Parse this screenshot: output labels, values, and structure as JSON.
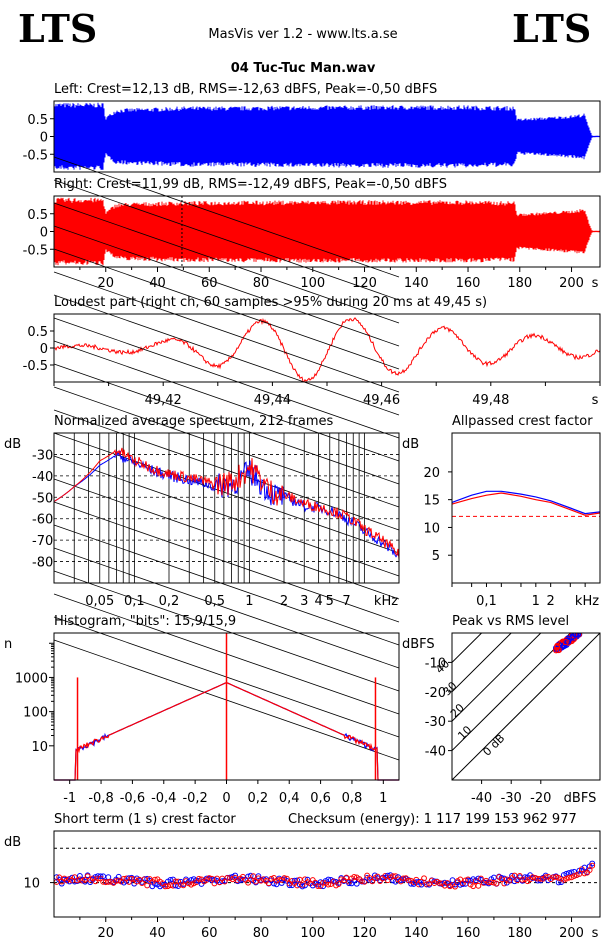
{
  "header": {
    "logo_left": "LTS",
    "logo_right": "LTS",
    "app": "MasVis ver 1.2 - www.lts.a.se",
    "file": "04 Tuc-Tuc Man.wav"
  },
  "colors": {
    "left": "#0000ff",
    "right": "#ff0000"
  },
  "chart_data": [
    {
      "type": "area",
      "title": "Left: Crest=12,13 dB, RMS=-12,63 dBFS, Peak=-0,50 dBFS",
      "ylim": [
        -1,
        1
      ],
      "xlim": [
        0,
        211
      ],
      "y_ticks": [
        "0.5",
        "0",
        "-0.5"
      ],
      "envelope_time_s": [
        0,
        10,
        19,
        20,
        24,
        30,
        40,
        50,
        60,
        70,
        80,
        100,
        120,
        140,
        160,
        170,
        178,
        179,
        190,
        200,
        205,
        207,
        208
      ],
      "envelope_amp": [
        0.95,
        0.95,
        0.95,
        0.55,
        0.78,
        0.8,
        0.82,
        0.85,
        0.85,
        0.85,
        0.86,
        0.87,
        0.88,
        0.88,
        0.88,
        0.86,
        0.86,
        0.5,
        0.55,
        0.6,
        0.65,
        0.2,
        0.02
      ]
    },
    {
      "type": "area",
      "title": "Right: Crest=11,99 dB, RMS=-12,49 dBFS, Peak=-0,50 dBFS",
      "ylim": [
        -1,
        1
      ],
      "xlim": [
        0,
        211
      ],
      "y_ticks": [
        "0.5",
        "0",
        "-0.5"
      ],
      "x_ticks": [
        "20",
        "40",
        "60",
        "80",
        "100",
        "120",
        "140",
        "160",
        "180",
        "200",
        "s"
      ],
      "marker_s": 49.45,
      "envelope_time_s": [
        0,
        10,
        19,
        20,
        24,
        30,
        40,
        50,
        60,
        70,
        80,
        100,
        120,
        140,
        160,
        170,
        178,
        179,
        190,
        200,
        205,
        207,
        208
      ],
      "envelope_amp": [
        0.95,
        0.95,
        0.95,
        0.55,
        0.8,
        0.82,
        0.84,
        0.86,
        0.86,
        0.87,
        0.87,
        0.88,
        0.88,
        0.88,
        0.88,
        0.86,
        0.86,
        0.5,
        0.55,
        0.6,
        0.65,
        0.2,
        0.02
      ]
    },
    {
      "type": "line",
      "title": "Loudest part (right ch, 60 samples >95% during 20 ms at 49,45 s)",
      "ylim": [
        -1,
        1
      ],
      "xlim": [
        49.4,
        49.5
      ],
      "y_ticks": [
        "0.5",
        "0",
        "-0.5"
      ],
      "x_ticks": [
        "49,42",
        "49,44",
        "49,46",
        "49,48",
        "s"
      ],
      "x": [
        49.4,
        49.41,
        49.42,
        49.425,
        49.43,
        49.435,
        49.44,
        49.445,
        49.45,
        49.455,
        49.46,
        49.465,
        49.47,
        49.475,
        49.48,
        49.485,
        49.49,
        49.495,
        49.5
      ],
      "amp": [
        0.05,
        0.1,
        0.2,
        0.35,
        0.55,
        0.7,
        0.85,
        0.95,
        0.95,
        0.85,
        0.8,
        0.7,
        0.6,
        0.55,
        0.45,
        0.4,
        0.35,
        0.3,
        0.2
      ]
    },
    {
      "type": "line",
      "title": "Normalized average spectrum, 212 frames",
      "ylabel": "dB",
      "xlabel": "kHz",
      "ylim": [
        -90,
        -20
      ],
      "y_ticks": [
        "-30",
        "-40",
        "-50",
        "-60",
        "-70",
        "-80"
      ],
      "x_ticks": [
        "0,05",
        "0,1",
        "0,2",
        "0,5",
        "1",
        "2",
        "3",
        "4",
        "5",
        "7",
        "kHz"
      ],
      "x_khz": [
        0.02,
        0.03,
        0.05,
        0.07,
        0.1,
        0.15,
        0.2,
        0.3,
        0.5,
        0.7,
        1,
        1.5,
        2,
        3,
        5,
        7,
        10,
        15,
        20
      ],
      "series": [
        {
          "name": "left",
          "values": [
            -52,
            -45,
            -35,
            -30,
            -34,
            -38,
            -40,
            -42,
            -45,
            -44,
            -38,
            -48,
            -50,
            -54,
            -56,
            -60,
            -66,
            -72,
            -78
          ]
        },
        {
          "name": "right",
          "values": [
            -52,
            -45,
            -33,
            -28,
            -33,
            -37,
            -39,
            -41,
            -44,
            -43,
            -36,
            -47,
            -49,
            -53,
            -56,
            -59,
            -65,
            -71,
            -77
          ]
        }
      ]
    },
    {
      "type": "line",
      "title": "Allpassed crest factor",
      "ylabel": "dB",
      "xlabel": "kHz",
      "ylim": [
        0,
        27
      ],
      "y_ticks": [
        "20",
        "15",
        "10",
        "5"
      ],
      "x_ticks": [
        "0,1",
        "1",
        "2",
        "kHz"
      ],
      "reference_db": 12,
      "x_khz": [
        0.02,
        0.05,
        0.1,
        0.2,
        0.5,
        1,
        2,
        5,
        10,
        20
      ],
      "series": [
        {
          "name": "left",
          "values": [
            14.5,
            15.8,
            16.5,
            16.5,
            16.0,
            15.5,
            14.8,
            13.5,
            12.5,
            12.8
          ]
        },
        {
          "name": "right",
          "values": [
            14.2,
            15.2,
            15.8,
            16.2,
            15.6,
            15.0,
            14.5,
            13.2,
            12.2,
            12.6
          ]
        }
      ]
    },
    {
      "type": "line",
      "title": "Histogram, \"bits\": 15,9/15,9",
      "ylabel": "n",
      "xlim": [
        -1.1,
        1.1
      ],
      "y_ticks": [
        "1000",
        "100",
        "10"
      ],
      "x_ticks": [
        "-1",
        "-0,8",
        "-0,6",
        "-0,4",
        "-0,2",
        "0",
        "0,2",
        "0,4",
        "0,6",
        "0,8",
        "1"
      ],
      "x": [
        -1.0,
        -0.95,
        -0.9,
        -0.8,
        -0.6,
        -0.4,
        -0.2,
        0,
        0.2,
        0.4,
        0.6,
        0.8,
        0.9,
        0.95,
        1.0
      ],
      "series": [
        {
          "name": "left",
          "values": [
            0,
            1000,
            10,
            20,
            50,
            120,
            300,
            800,
            300,
            120,
            50,
            20,
            10,
            1000,
            0
          ]
        },
        {
          "name": "right",
          "values": [
            0,
            1000,
            10,
            20,
            50,
            120,
            300,
            800,
            300,
            120,
            50,
            20,
            10,
            1000,
            0
          ]
        }
      ]
    },
    {
      "type": "scatter",
      "title": "Peak vs RMS level",
      "ylabel": "dBFS",
      "xlabel": "dBFS",
      "xlim": [
        -50,
        0
      ],
      "ylim": [
        -50,
        0
      ],
      "y_ticks": [
        "-10",
        "-20",
        "-30",
        "-40"
      ],
      "x_ticks": [
        "-40",
        "-30",
        "-20",
        "dBFS"
      ],
      "diagonal_labels": [
        "40",
        "30",
        "20",
        "10",
        "0 dB"
      ],
      "cluster": {
        "rms_min": -15,
        "rms_max": -7,
        "peak_min": -6,
        "peak_max": -0.5
      }
    },
    {
      "type": "scatter",
      "title": "Short term (1 s) crest factor",
      "annotation": "Checksum (energy):  1 117 199 153 962 977",
      "ylabel": "dB",
      "xlim": [
        0,
        211
      ],
      "ylim": [
        0,
        25
      ],
      "y_ticks": [
        "10"
      ],
      "reference_db": [
        10,
        20
      ],
      "x_ticks": [
        "20",
        "40",
        "60",
        "80",
        "100",
        "120",
        "140",
        "160",
        "180",
        "200",
        "s"
      ]
    }
  ]
}
